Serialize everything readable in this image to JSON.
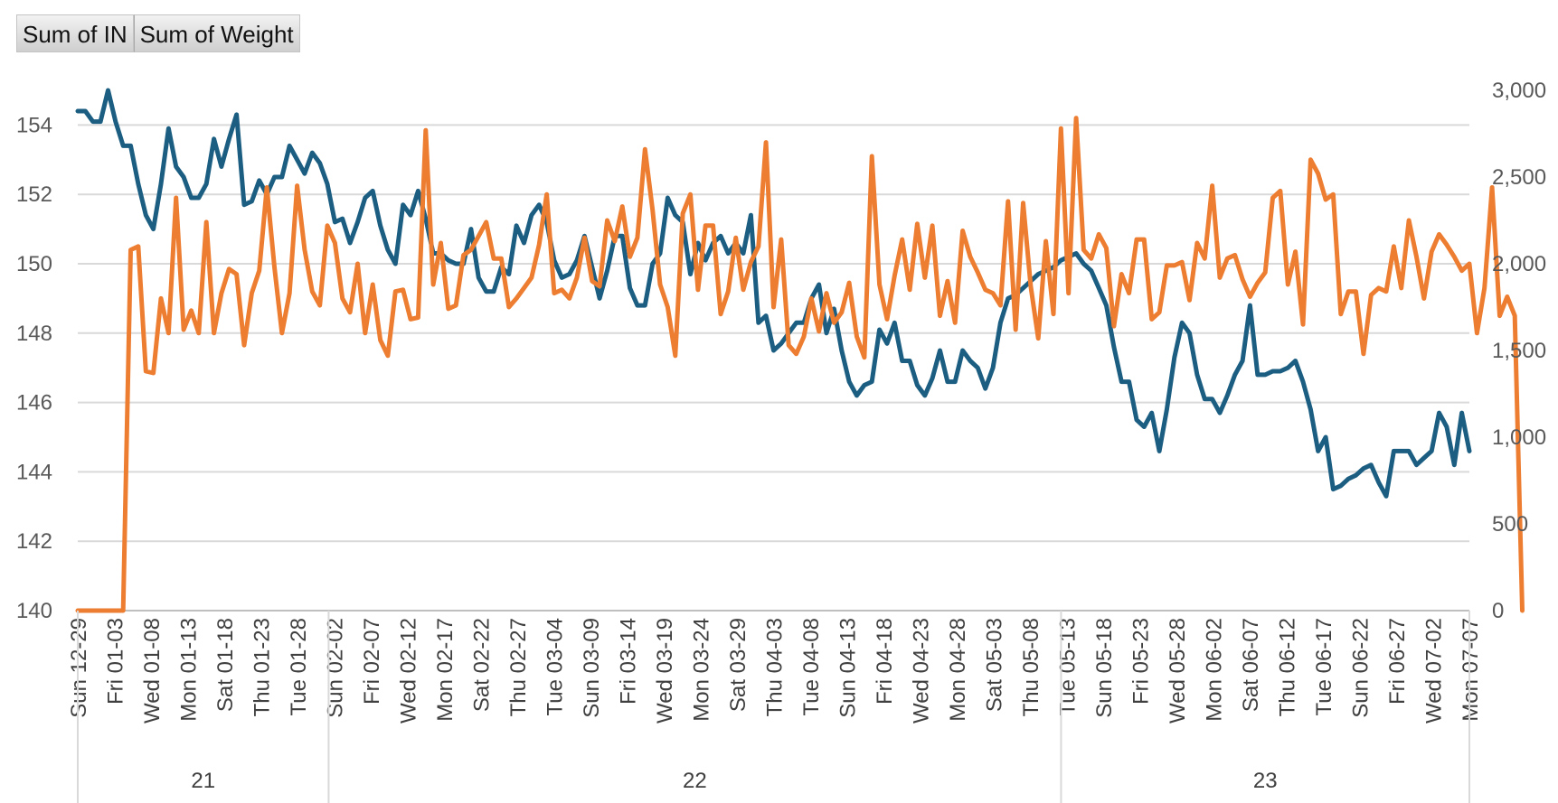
{
  "field_buttons": [
    {
      "label": "Sum of IN"
    },
    {
      "label": "Sum of Weight"
    }
  ],
  "chart_data": {
    "type": "line",
    "title": "",
    "xlabel": "",
    "ylabel": "",
    "grid": true,
    "y_left": {
      "min": 140,
      "max": 155,
      "ticks": [
        140,
        142,
        144,
        146,
        148,
        150,
        152,
        154
      ]
    },
    "y_right": {
      "min": 0,
      "max": 3000,
      "ticks": [
        0,
        500,
        1000,
        1500,
        2000,
        2500,
        3000
      ],
      "tick_labels": [
        "0",
        "500",
        "1,000",
        "1,500",
        "2,000",
        "2,500",
        "3,000"
      ]
    },
    "x_tick_labels": [
      "Sun 12-29",
      "Fri 01-03",
      "Wed 01-08",
      "Mon 01-13",
      "Sat 01-18",
      "Thu 01-23",
      "Tue 01-28",
      "Sun 02-02",
      "Fri 02-07",
      "Wed 02-12",
      "Mon 02-17",
      "Sat 02-22",
      "Thu 02-27",
      "Tue 03-04",
      "Sun 03-09",
      "Fri 03-14",
      "Wed 03-19",
      "Mon 03-24",
      "Sat 03-29",
      "Thu 04-03",
      "Tue 04-08",
      "Sun 04-13",
      "Fri 04-18",
      "Wed 04-23",
      "Mon 04-28",
      "Sat 05-03",
      "Thu 05-08",
      "Tue 05-13",
      "Sun 05-18",
      "Fri 05-23",
      "Wed 05-28",
      "Mon 06-02",
      "Sat 06-07",
      "Thu 06-12",
      "Tue 06-17",
      "Sun 06-22",
      "Fri 06-27",
      "Wed 07-02",
      "Mon 07-07"
    ],
    "year_groups": [
      {
        "label": "21",
        "span": [
          0,
          7
        ]
      },
      {
        "label": "22",
        "span": [
          7,
          27
        ]
      },
      {
        "label": "23",
        "span": [
          27,
          38
        ]
      }
    ],
    "series": [
      {
        "name": "Sum of IN",
        "color": "#1b5e82",
        "axis": "left",
        "values": [
          154.4,
          154.4,
          154.1,
          154.1,
          155.0,
          154.1,
          153.4,
          153.4,
          152.3,
          151.4,
          151.0,
          152.3,
          153.9,
          152.8,
          152.5,
          151.9,
          151.9,
          152.3,
          153.6,
          152.8,
          153.6,
          154.3,
          151.7,
          151.8,
          152.4,
          152.0,
          152.5,
          152.5,
          153.4,
          153.0,
          152.6,
          153.2,
          152.9,
          152.3,
          151.2,
          151.3,
          150.6,
          151.2,
          151.9,
          152.1,
          151.1,
          150.4,
          150.0,
          151.7,
          151.4,
          152.1,
          151.3,
          150.3,
          150.3,
          150.1,
          150.0,
          150.0,
          151.0,
          149.6,
          149.2,
          149.2,
          149.9,
          149.7,
          151.1,
          150.6,
          151.4,
          151.7,
          151.2,
          150.1,
          149.6,
          149.7,
          150.1,
          150.8,
          149.9,
          149.0,
          149.8,
          150.8,
          150.8,
          149.3,
          148.8,
          148.8,
          150.0,
          150.3,
          151.9,
          151.4,
          151.2,
          149.7,
          150.6,
          150.1,
          150.6,
          150.8,
          150.3,
          150.6,
          150.3,
          151.4,
          148.3,
          148.5,
          147.5,
          147.7,
          148.0,
          148.3,
          148.3,
          149.0,
          149.4,
          148.0,
          148.7,
          147.5,
          146.6,
          146.2,
          146.5,
          146.6,
          148.1,
          147.7,
          148.3,
          147.2,
          147.2,
          146.5,
          146.2,
          146.7,
          147.5,
          146.6,
          146.6,
          147.5,
          147.2,
          147.0,
          146.4,
          147.0,
          148.3,
          149.0,
          149.1,
          149.3,
          149.5,
          149.7,
          149.8,
          149.9,
          150.1,
          150.2,
          150.3,
          150.0,
          149.8,
          149.3,
          148.8,
          147.6,
          146.6,
          146.6,
          145.5,
          145.3,
          145.7,
          144.6,
          145.8,
          147.3,
          148.3,
          148.0,
          146.8,
          146.1,
          146.1,
          145.7,
          146.2,
          146.8,
          147.2,
          148.8,
          146.8,
          146.8,
          146.9,
          146.9,
          147.0,
          147.2,
          146.6,
          145.8,
          144.6,
          145.0,
          143.5,
          143.6,
          143.8,
          143.9,
          144.1,
          144.2,
          143.7,
          143.3,
          144.6,
          144.6,
          144.6,
          144.2,
          144.4,
          144.6,
          145.7,
          145.3,
          144.2,
          145.7,
          144.6
        ]
      },
      {
        "name": "Sum of Weight",
        "color": "#ed7d31",
        "axis": "right",
        "values": [
          0,
          0,
          0,
          0,
          0,
          0,
          0,
          2080,
          2100,
          1380,
          1370,
          1800,
          1600,
          2380,
          1620,
          1730,
          1600,
          2240,
          1600,
          1830,
          1970,
          1940,
          1530,
          1830,
          1960,
          2440,
          1980,
          1600,
          1830,
          2450,
          2080,
          1840,
          1760,
          2220,
          2120,
          1800,
          1720,
          2000,
          1600,
          1880,
          1560,
          1470,
          1840,
          1850,
          1680,
          1690,
          2770,
          1880,
          2120,
          1740,
          1760,
          2050,
          2080,
          2160,
          2240,
          2030,
          2030,
          1750,
          1800,
          1860,
          1920,
          2110,
          2400,
          1830,
          1850,
          1800,
          1920,
          2150,
          1900,
          1870,
          2250,
          2130,
          2330,
          2040,
          2150,
          2660,
          2310,
          1880,
          1750,
          1470,
          2290,
          2400,
          1850,
          2220,
          2220,
          1710,
          1840,
          2150,
          1850,
          2010,
          2100,
          2700,
          1750,
          2140,
          1530,
          1480,
          1580,
          1800,
          1610,
          1830,
          1660,
          1720,
          1890,
          1580,
          1460,
          2620,
          1880,
          1680,
          1930,
          2140,
          1850,
          2230,
          1920,
          2220,
          1700,
          1900,
          1660,
          2190,
          2040,
          1950,
          1850,
          1830,
          1760,
          2360,
          1620,
          2350,
          1870,
          1570,
          2130,
          1710,
          2780,
          1830,
          2840,
          2080,
          2030,
          2170,
          2090,
          1640,
          1940,
          1830,
          2140,
          2140,
          1680,
          1720,
          1990,
          1990,
          2010,
          1790,
          2120,
          2030,
          2450,
          1920,
          2030,
          2050,
          1910,
          1810,
          1890,
          1950,
          2380,
          2420,
          1880,
          2070,
          1650,
          2600,
          2520,
          2370,
          2400,
          1710,
          1840,
          1840,
          1480,
          1820,
          1860,
          1840,
          2100,
          1860,
          2250,
          2040,
          1800,
          2070,
          2170,
          2110,
          2040,
          1960,
          2000,
          1600,
          1860,
          2440,
          1700,
          1810,
          1700,
          0
        ]
      }
    ]
  }
}
